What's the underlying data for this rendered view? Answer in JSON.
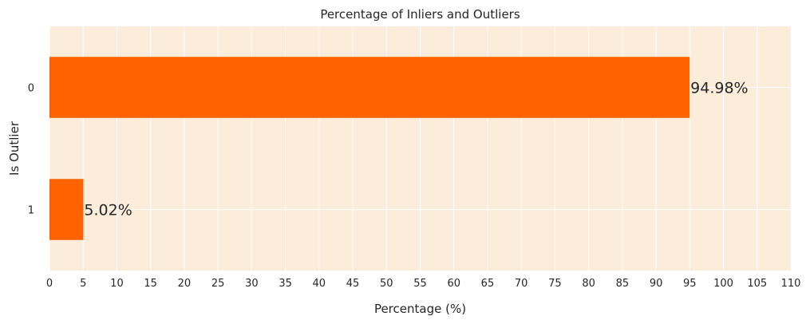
{
  "chart_data": {
    "type": "bar",
    "orientation": "horizontal",
    "title": "Percentage of Inliers and Outliers",
    "xlabel": "Percentage (%)",
    "ylabel": "Is Outlier",
    "categories": [
      "0",
      "1"
    ],
    "values": [
      94.98,
      5.02
    ],
    "data_labels": [
      "94.98%",
      "5.02%"
    ],
    "xlim": [
      0,
      110
    ],
    "xticks": [
      0,
      5,
      10,
      15,
      20,
      25,
      30,
      35,
      40,
      45,
      50,
      55,
      60,
      65,
      70,
      75,
      80,
      85,
      90,
      95,
      100,
      105,
      110
    ],
    "xtick_labels": [
      "0",
      "5",
      "10",
      "15",
      "20",
      "25",
      "30",
      "35",
      "40",
      "45",
      "50",
      "55",
      "60",
      "65",
      "70",
      "75",
      "80",
      "85",
      "90",
      "95",
      "100",
      "105",
      "110"
    ],
    "grid": true,
    "legend": "none",
    "colors": {
      "bar": "#ff6200",
      "plot_background": "#fcedda",
      "grid": "#ffffff",
      "text": "#262626"
    }
  }
}
